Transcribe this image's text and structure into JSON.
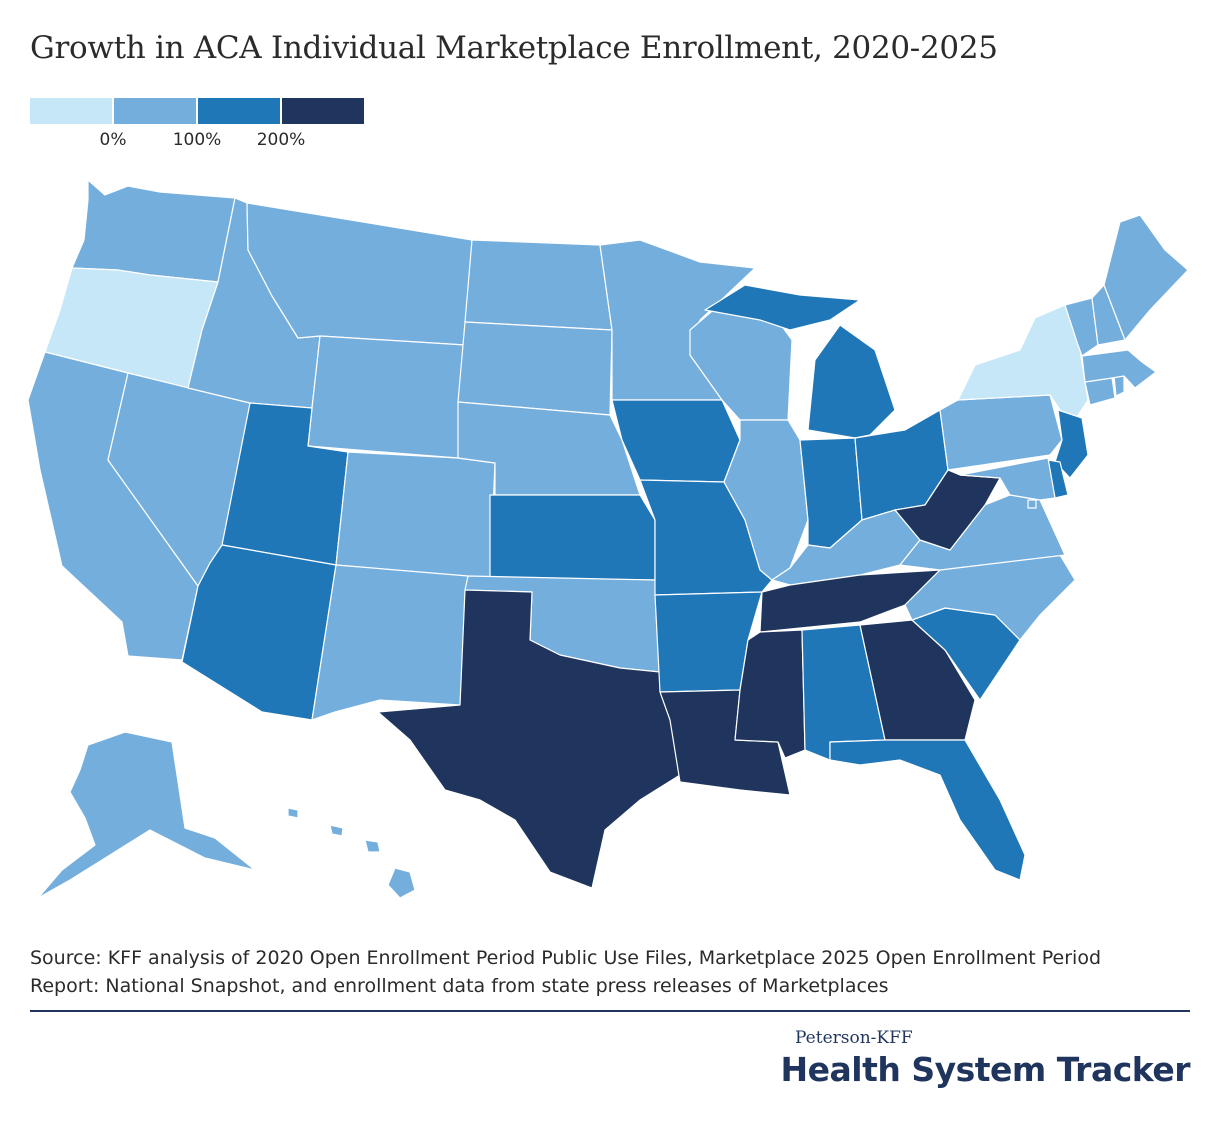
{
  "title": "Growth in ACA Individual Marketplace Enrollment, 2020-2025",
  "legend": {
    "bins": [
      {
        "color": "#c6e7f8"
      },
      {
        "color": "#74aedd"
      },
      {
        "color": "#1f77b8"
      },
      {
        "color": "#1f355e"
      }
    ],
    "ticks": [
      "0%",
      "100%",
      "200%"
    ]
  },
  "chart_data": {
    "type": "choropleth",
    "title": "Growth in ACA Individual Marketplace Enrollment, 2020-2025",
    "bins": [
      "below 0%",
      "0%-100%",
      "100%-200%",
      "above 200%"
    ],
    "states": {
      "WA": 1,
      "OR": 0,
      "CA": 1,
      "NV": 1,
      "ID": 1,
      "MT": 1,
      "WY": 1,
      "UT": 2,
      "AZ": 2,
      "CO": 1,
      "NM": 1,
      "ND": 1,
      "SD": 1,
      "NE": 1,
      "KS": 2,
      "OK": 1,
      "TX": 3,
      "MN": 1,
      "IA": 2,
      "MO": 2,
      "AR": 2,
      "LA": 3,
      "WI": 1,
      "IL": 1,
      "MI": 2,
      "IN": 2,
      "OH": 2,
      "KY": 1,
      "TN": 3,
      "MS": 3,
      "AL": 2,
      "GA": 3,
      "FL": 2,
      "SC": 2,
      "NC": 1,
      "VA": 1,
      "WV": 3,
      "PA": 1,
      "NY": 0,
      "NJ": 2,
      "DE": 2,
      "MD": 1,
      "DC": 1,
      "CT": 1,
      "RI": 1,
      "MA": 1,
      "VT": 1,
      "NH": 1,
      "ME": 1,
      "AK": 1,
      "HI": 1
    }
  },
  "source": {
    "line1": "Source: KFF analysis of 2020 Open Enrollment Period Public Use Files, Marketplace 2025 Open Enrollment Period",
    "line2": "Report: National Snapshot, and enrollment data from state press releases of Marketplaces"
  },
  "brand": {
    "small": "Peterson-KFF",
    "big": "Health System Tracker"
  }
}
